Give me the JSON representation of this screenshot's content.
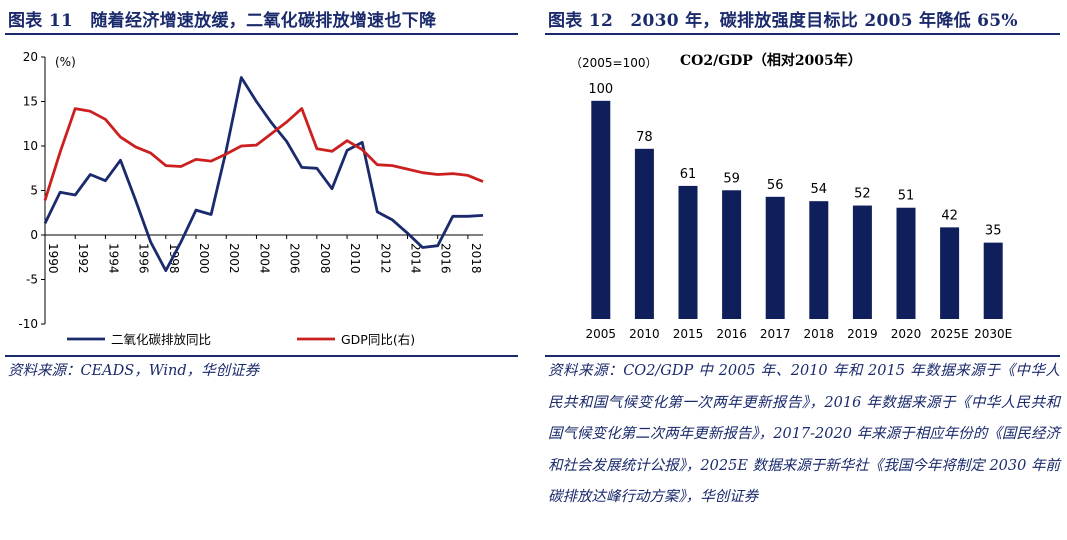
{
  "left_figure": {
    "title": "图表 11　随着经济增速放缓，二氧化碳排放增速也下降",
    "source": "资料来源：CEADS，Wind，华创证券"
  },
  "right_figure": {
    "title": "图表 12　2030 年，碳排放强度目标比 2005 年降低 65%",
    "source": "资料来源：CO2/GDP 中 2005 年、2010 年和 2015 年数据来源于《中华人民共和国气候变化第一次两年更新报告》，2016 年数据来源于《中华人民共和国气候变化第二次两年更新报告》，2017-2020 年来源于相应年份的《国民经济和社会发展统计公报》，2025E 数据来源于新华社《我国今年将制定 2030 年前碳排放达峰行动方案》，华创证券"
  },
  "colors": {
    "navy": "#1a2a6c",
    "bar": "#0e1f5b",
    "red": "#cc1f1f"
  },
  "chart_data": [
    {
      "type": "line",
      "unit_label": "(%)",
      "ylim": [
        -10,
        20
      ],
      "yticks": [
        -10,
        -5,
        0,
        5,
        10,
        15,
        20
      ],
      "xlim": [
        1990,
        2019
      ],
      "xticks": [
        "1990",
        "1992",
        "1994",
        "1996",
        "1998",
        "2000",
        "2002",
        "2004",
        "2006",
        "2008",
        "2010",
        "2012",
        "2014",
        "2016",
        "2018"
      ],
      "series": [
        {
          "name": "二氧化碳排放同比",
          "color": "#1a2a6c",
          "x": [
            1990,
            1991,
            1992,
            1993,
            1994,
            1995,
            1996,
            1997,
            1998,
            1999,
            2000,
            2001,
            2002,
            2003,
            2004,
            2005,
            2006,
            2007,
            2008,
            2009,
            2010,
            2011,
            2012,
            2013,
            2014,
            2015,
            2016,
            2017,
            2018,
            2019
          ],
          "values": [
            1.3,
            4.8,
            4.5,
            6.8,
            6.1,
            8.4,
            3.9,
            -0.8,
            -4.0,
            -0.8,
            2.8,
            2.3,
            9.5,
            17.7,
            15.0,
            12.6,
            10.5,
            7.6,
            7.5,
            5.2,
            9.5,
            10.4,
            2.6,
            1.7,
            0.2,
            -1.4,
            -1.2,
            2.1,
            2.1,
            2.2
          ]
        },
        {
          "name": "GDP同比(右)",
          "color": "#cc1f1f",
          "x": [
            1990,
            1991,
            1992,
            1993,
            1994,
            1995,
            1996,
            1997,
            1998,
            1999,
            2000,
            2001,
            2002,
            2003,
            2004,
            2005,
            2006,
            2007,
            2008,
            2009,
            2010,
            2011,
            2012,
            2013,
            2014,
            2015,
            2016,
            2017,
            2018,
            2019
          ],
          "values": [
            3.9,
            9.3,
            14.2,
            13.9,
            13.0,
            11.0,
            9.9,
            9.2,
            7.8,
            7.7,
            8.5,
            8.3,
            9.1,
            10.0,
            10.1,
            11.4,
            12.7,
            14.2,
            9.7,
            9.4,
            10.6,
            9.6,
            7.9,
            7.8,
            7.4,
            7.0,
            6.8,
            6.9,
            6.7,
            6.0
          ]
        }
      ]
    },
    {
      "type": "bar",
      "title": "CO2/GDP（相对2005年）",
      "unit_label": "（2005=100）",
      "categories": [
        "2005",
        "2010",
        "2015",
        "2016",
        "2017",
        "2018",
        "2019",
        "2020",
        "2025E",
        "2030E"
      ],
      "values": [
        100,
        78,
        61,
        59,
        56,
        54,
        52,
        51,
        42,
        35
      ],
      "ylim": [
        0,
        110
      ]
    }
  ]
}
